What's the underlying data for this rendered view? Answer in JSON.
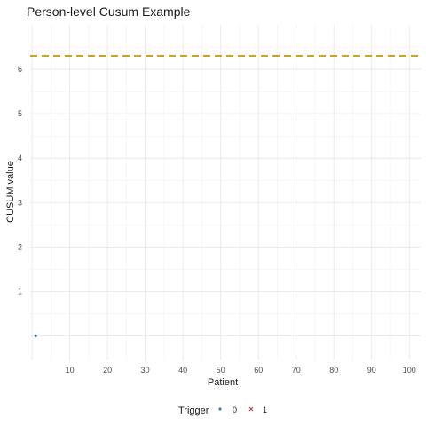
{
  "chart_data": {
    "type": "scatter",
    "title": "Person-level Cusum Example",
    "xlabel": "Patient",
    "ylabel": "CUSUM value",
    "xlim": [
      -0.5,
      103
    ],
    "ylim": [
      -0.55,
      7.0
    ],
    "x_ticks": [
      10,
      20,
      30,
      40,
      50,
      60,
      70,
      80,
      90,
      100
    ],
    "y_ticks": [
      1,
      2,
      3,
      4,
      5,
      6
    ],
    "grid": true,
    "threshold": {
      "value": 6.3,
      "color": "#c9a227",
      "style": "dashed"
    },
    "series": [
      {
        "name": "0",
        "marker": "diamond",
        "color": "#2b7bb9",
        "x": [
          1
        ],
        "y": [
          0
        ]
      },
      {
        "name": "1",
        "marker": "cross",
        "color": "#b03a3a",
        "x": [],
        "y": []
      }
    ],
    "legend": {
      "title": "Trigger",
      "placement": "bottom",
      "entries": [
        "0",
        "1"
      ]
    }
  }
}
